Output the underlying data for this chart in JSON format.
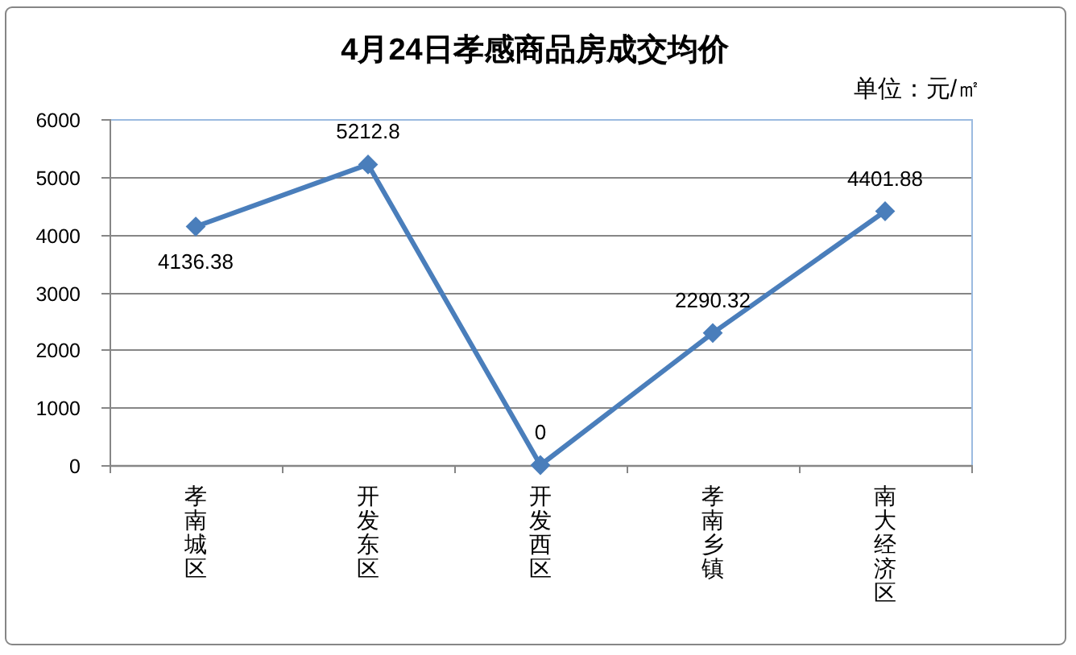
{
  "chart_data": {
    "type": "line",
    "title": "4月24日孝感商品房成交均价",
    "subtitle": "单位：元/㎡",
    "categories": [
      "孝南城区",
      "开发东区",
      "开发西区",
      "孝南乡镇",
      "南大经济区"
    ],
    "series": [
      {
        "color": "#4a7ebb",
        "values": [
          4136.38,
          5212.8,
          0,
          2290.32,
          4401.88
        ]
      }
    ],
    "ylim": [
      0,
      6000
    ],
    "yticks": [
      0,
      1000,
      2000,
      3000,
      4000,
      5000,
      6000
    ],
    "grid": "y",
    "marker": "diamond",
    "line_style": "solid",
    "data_labels": true
  }
}
